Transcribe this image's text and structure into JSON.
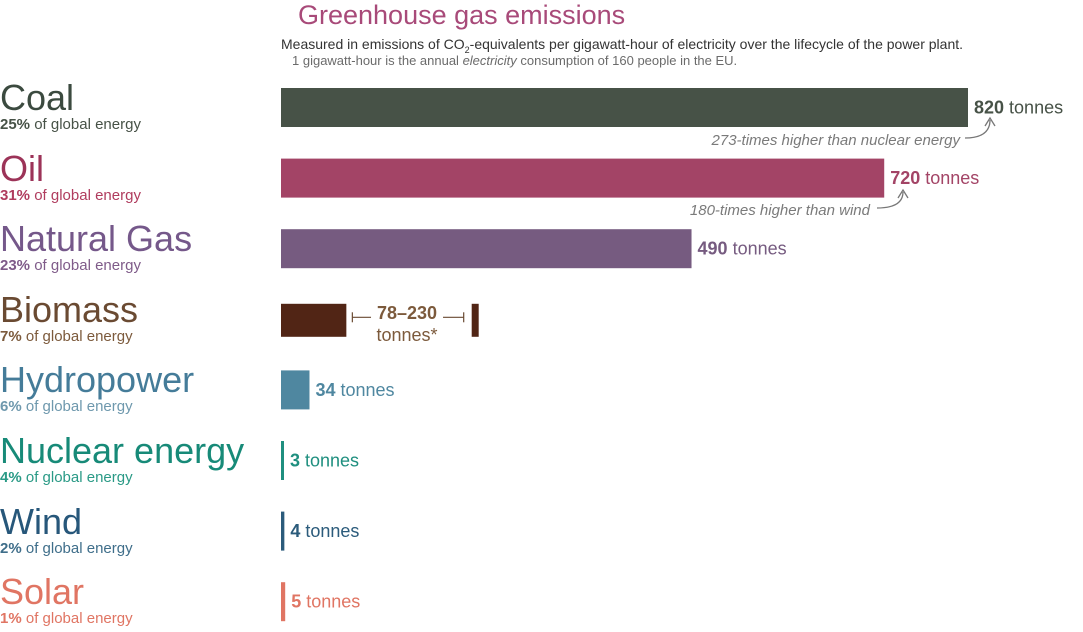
{
  "chart_data": {
    "type": "bar",
    "orientation": "horizontal",
    "title": "Greenhouse gas emissions",
    "subtitle": "Measured in emissions of CO₂-equivalents per gigawatt-hour of electricity over the lifecycle of the power plant.",
    "subtitle_note": {
      "before": "1 gigawatt-hour is the annual ",
      "italic": "electricity",
      "after": " consumption of 160 people in the EU."
    },
    "unit": "tonnes",
    "categories": [
      {
        "name": "Coal",
        "share": "25%",
        "share_label": "of global energy",
        "value": 820,
        "value_label": "820",
        "color": "#475247",
        "share_color": "#475247",
        "name_color": "#3b4a3f"
      },
      {
        "name": "Oil",
        "share": "31%",
        "share_label": "of global energy",
        "value": 720,
        "value_label": "720",
        "color": "#a34466",
        "share_color": "#b03c5e",
        "name_color": "#9c3358"
      },
      {
        "name": "Natural Gas",
        "share": "23%",
        "share_label": "of global energy",
        "value": 490,
        "value_label": "490",
        "color": "#765b80",
        "share_color": "#7f5b89",
        "name_color": "#75588a"
      },
      {
        "name": "Biomass",
        "share": "7%",
        "share_label": "of global energy",
        "range": [
          78,
          230
        ],
        "value_label": "78–230",
        "range_unit_label": "tonnes*",
        "color": "#512515",
        "share_color": "#7c5a3c",
        "name_color": "#6a4a32"
      },
      {
        "name": "Hydropower",
        "share": "6%",
        "share_label": "of global energy",
        "value": 34,
        "value_label": "34",
        "color": "#4f87a0",
        "share_color": "#6e98ad",
        "name_color": "#457c99"
      },
      {
        "name": "Nuclear energy",
        "share": "4%",
        "share_label": "of global energy",
        "value": 3,
        "value_label": "3",
        "color": "#1f8f7f",
        "share_color": "#2a9a86",
        "name_color": "#178a78"
      },
      {
        "name": "Wind",
        "share": "2%",
        "share_label": "of global energy",
        "value": 4,
        "value_label": "4",
        "color": "#2b5b7b",
        "share_color": "#3f6e8a",
        "name_color": "#27577a"
      },
      {
        "name": "Solar",
        "share": "1%",
        "share_label": "of global energy",
        "value": 5,
        "value_label": "5",
        "color": "#e07563",
        "share_color": "#e07563",
        "name_color": "#e07563"
      }
    ],
    "annotations": [
      {
        "category": "Coal",
        "text": "273-times higher than nuclear energy"
      },
      {
        "category": "Oil",
        "text": "180-times higher than wind"
      }
    ],
    "xlim": [
      0,
      820
    ]
  }
}
